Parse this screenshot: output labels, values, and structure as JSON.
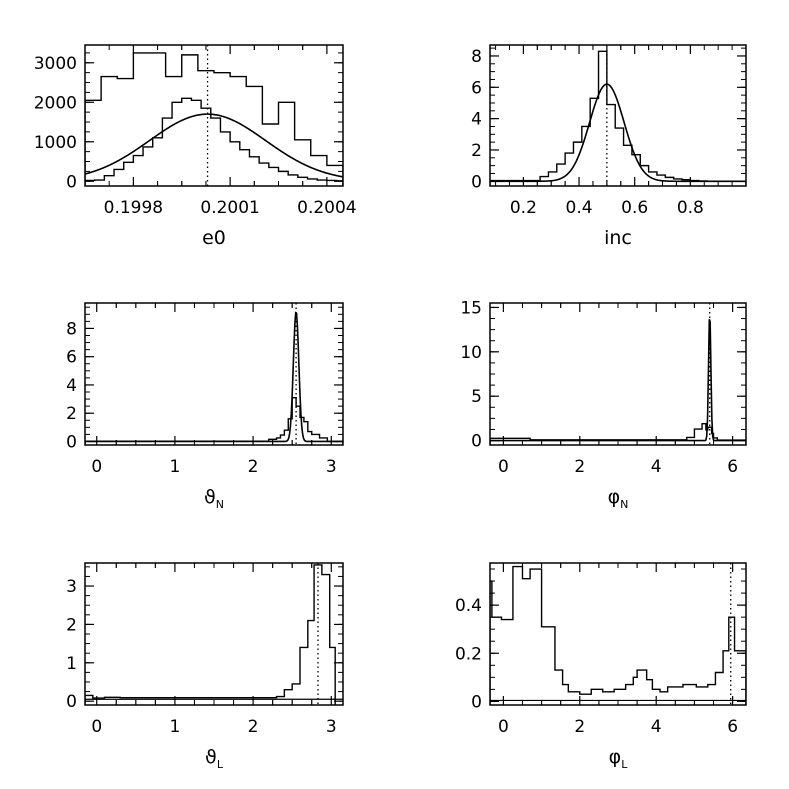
{
  "chart_data": [
    {
      "type": "histogram",
      "xlabel": "e0",
      "xlim": [
        0.19965,
        0.20045
      ],
      "ylim": [
        -120,
        3450
      ],
      "xticks": [
        {
          "v": 0.1998,
          "label": "0.1998"
        },
        {
          "v": 0.2001,
          "label": "0.2001"
        },
        {
          "v": 0.2004,
          "label": "0.2004"
        }
      ],
      "yticks": [
        {
          "v": 0,
          "label": "0"
        },
        {
          "v": 1000,
          "label": "1000"
        },
        {
          "v": 2000,
          "label": "2000"
        },
        {
          "v": 3000,
          "label": "3000"
        }
      ],
      "truth_x": 0.20003,
      "histograms": [
        {
          "name": "prior",
          "edges": [
            0.19965,
            0.19968,
            0.19971,
            0.19974,
            0.19977,
            0.1998,
            0.19983,
            0.19986,
            0.19989,
            0.19992,
            0.19995,
            0.19998,
            0.20001,
            0.20004,
            0.20007,
            0.2001,
            0.20013,
            0.20016,
            0.20019,
            0.20022,
            0.20025,
            0.20028,
            0.20031,
            0.20034,
            0.20037,
            0.2004,
            0.20043,
            0.20045
          ],
          "values": [
            20,
            30,
            140,
            300,
            480,
            650,
            870,
            1100,
            1600,
            2000,
            2100,
            2050,
            1850,
            1600,
            1250,
            1000,
            800,
            620,
            460,
            350,
            250,
            160,
            100,
            60,
            30,
            20,
            10
          ]
        },
        {
          "name": "posterior",
          "edges": [
            0.19965,
            0.1997,
            0.19975,
            0.1998,
            0.19985,
            0.1999,
            0.19995,
            0.2,
            0.20005,
            0.2001,
            0.20015,
            0.2002,
            0.20025,
            0.2003,
            0.20035,
            0.2004,
            0.20045
          ],
          "values": [
            2050,
            2650,
            2600,
            3250,
            3250,
            2650,
            3200,
            2800,
            2750,
            2650,
            2400,
            1450,
            2000,
            1050,
            650,
            400
          ]
        }
      ],
      "curves": [
        {
          "name": "gaussian",
          "type": "gaussian",
          "mean": 0.20003,
          "sigma": 0.00018,
          "amp": 1700
        }
      ]
    },
    {
      "type": "histogram",
      "xlabel": "inc",
      "xlim": [
        0.08,
        1.0
      ],
      "ylim": [
        -0.3,
        8.7
      ],
      "xticks": [
        {
          "v": 0.2,
          "label": "0.2"
        },
        {
          "v": 0.4,
          "label": "0.4"
        },
        {
          "v": 0.6,
          "label": "0.6"
        },
        {
          "v": 0.8,
          "label": "0.8"
        }
      ],
      "yticks": [
        {
          "v": 0,
          "label": "0"
        },
        {
          "v": 2,
          "label": "2"
        },
        {
          "v": 4,
          "label": "4"
        },
        {
          "v": 6,
          "label": "6"
        },
        {
          "v": 8,
          "label": "8"
        }
      ],
      "truth_x": 0.5,
      "histograms": [
        {
          "name": "posterior",
          "edges": [
            0.08,
            0.26,
            0.29,
            0.32,
            0.35,
            0.38,
            0.41,
            0.44,
            0.47,
            0.5,
            0.53,
            0.56,
            0.59,
            0.62,
            0.65,
            0.68,
            0.71,
            0.74,
            0.77,
            0.8,
            0.83,
            0.86,
            1.0
          ],
          "values": [
            0.05,
            0.3,
            0.6,
            1.1,
            1.8,
            2.5,
            3.5,
            5.3,
            8.3,
            4.9,
            3.4,
            2.3,
            1.7,
            1.0,
            0.6,
            0.4,
            0.25,
            0.15,
            0.1,
            0.05,
            0.02,
            0
          ]
        }
      ],
      "curves": [
        {
          "name": "gaussian",
          "type": "gaussian",
          "mean": 0.5,
          "sigma": 0.062,
          "amp": 6.2
        }
      ]
    },
    {
      "type": "histogram",
      "xlabel": "ϑ",
      "xlabel_sub": "N",
      "xlim": [
        -0.15,
        3.15
      ],
      "ylim": [
        -0.25,
        9.8
      ],
      "xticks": [
        {
          "v": 0,
          "label": "0"
        },
        {
          "v": 1,
          "label": "1"
        },
        {
          "v": 2,
          "label": "2"
        },
        {
          "v": 3,
          "label": "3"
        }
      ],
      "yticks": [
        {
          "v": 0,
          "label": "0"
        },
        {
          "v": 2,
          "label": "2"
        },
        {
          "v": 4,
          "label": "4"
        },
        {
          "v": 6,
          "label": "6"
        },
        {
          "v": 8,
          "label": "8"
        }
      ],
      "truth_x": 2.55,
      "histograms": [
        {
          "name": "posterior",
          "edges": [
            -0.15,
            2.2,
            2.3,
            2.35,
            2.4,
            2.45,
            2.5,
            2.55,
            2.6,
            2.65,
            2.7,
            2.75,
            2.85,
            2.95,
            3.15
          ],
          "values": [
            0.02,
            0.15,
            0.25,
            0.45,
            0.8,
            1.6,
            3.1,
            2.5,
            1.7,
            1.4,
            0.7,
            0.5,
            0.25,
            0
          ]
        }
      ],
      "curves": [
        {
          "name": "gaussian",
          "type": "gaussian",
          "mean": 2.55,
          "sigma": 0.035,
          "amp": 9.2
        }
      ]
    },
    {
      "type": "histogram",
      "xlabel": "φ",
      "xlabel_sub": "N",
      "xlim": [
        -0.35,
        6.35
      ],
      "ylim": [
        -0.5,
        15.5
      ],
      "xticks": [
        {
          "v": 0,
          "label": "0"
        },
        {
          "v": 2,
          "label": "2"
        },
        {
          "v": 4,
          "label": "4"
        },
        {
          "v": 6,
          "label": "6"
        }
      ],
      "yticks": [
        {
          "v": 0,
          "label": "0"
        },
        {
          "v": 5,
          "label": "5"
        },
        {
          "v": 10,
          "label": "10"
        },
        {
          "v": 15,
          "label": "15"
        }
      ],
      "truth_x": 5.4,
      "histograms": [
        {
          "name": "posterior",
          "edges": [
            -0.35,
            0.7,
            4.8,
            5.0,
            5.2,
            5.3,
            5.35,
            5.45,
            5.5,
            5.6,
            6.35
          ],
          "values": [
            0.25,
            0.08,
            0.35,
            1.3,
            1.9,
            1.2,
            1.5,
            0.8,
            0.3,
            0.05
          ]
        }
      ],
      "curves": [
        {
          "name": "gaussian",
          "type": "gaussian",
          "mean": 5.4,
          "sigma": 0.03,
          "amp": 14.5
        }
      ]
    },
    {
      "type": "histogram",
      "xlabel": "ϑ",
      "xlabel_sub": "L",
      "xlim": [
        -0.15,
        3.15
      ],
      "ylim": [
        -0.1,
        3.6
      ],
      "xticks": [
        {
          "v": 0,
          "label": "0"
        },
        {
          "v": 1,
          "label": "1"
        },
        {
          "v": 2,
          "label": "2"
        },
        {
          "v": 3,
          "label": "3"
        }
      ],
      "yticks": [
        {
          "v": 0,
          "label": "0"
        },
        {
          "v": 1,
          "label": "1"
        },
        {
          "v": 2,
          "label": "2"
        },
        {
          "v": 3,
          "label": "3"
        }
      ],
      "truth_x": 2.83,
      "histograms": [
        {
          "name": "posterior",
          "edges": [
            -0.15,
            -0.05,
            0.1,
            0.3,
            2.3,
            2.4,
            2.5,
            2.6,
            2.7,
            2.78,
            2.88,
            2.98,
            3.05
          ],
          "values": [
            0.15,
            0.08,
            0.1,
            0.09,
            0.12,
            0.3,
            0.45,
            1.4,
            2.1,
            3.55,
            3.3,
            1.4
          ]
        }
      ],
      "curves": [
        {
          "name": "baseline",
          "type": "segment",
          "x0": -0.15,
          "x1": 3.15,
          "y": 0.05
        }
      ]
    },
    {
      "type": "histogram",
      "xlabel": "φ",
      "xlabel_sub": "L",
      "xlim": [
        -0.35,
        6.35
      ],
      "ylim": [
        -0.015,
        0.575
      ],
      "xticks": [
        {
          "v": 0,
          "label": "0"
        },
        {
          "v": 2,
          "label": "2"
        },
        {
          "v": 4,
          "label": "4"
        },
        {
          "v": 6,
          "label": "6"
        }
      ],
      "yticks": [
        {
          "v": 0,
          "label": "0"
        },
        {
          "v": 0.2,
          "label": "0.2"
        },
        {
          "v": 0.4,
          "label": "0.4"
        }
      ],
      "truth_x": 5.95,
      "histograms": [
        {
          "name": "posterior",
          "edges": [
            -0.35,
            -0.3,
            -0.05,
            0.25,
            0.5,
            0.7,
            1.0,
            1.35,
            1.55,
            1.7,
            2.0,
            2.3,
            2.6,
            2.9,
            3.2,
            3.4,
            3.5,
            3.75,
            3.9,
            4.1,
            4.3,
            4.7,
            5.05,
            5.35,
            5.55,
            5.75,
            5.9,
            6.05,
            6.35
          ],
          "values": [
            0.5,
            0.35,
            0.34,
            0.56,
            0.51,
            0.55,
            0.31,
            0.13,
            0.07,
            0.04,
            0.03,
            0.05,
            0.04,
            0.05,
            0.07,
            0.1,
            0.13,
            0.09,
            0.05,
            0.04,
            0.06,
            0.07,
            0.06,
            0.07,
            0.12,
            0.21,
            0.35,
            0.21
          ]
        }
      ],
      "curves": [
        {
          "name": "baseline",
          "type": "segment",
          "x0": -0.35,
          "x1": 6.35,
          "y": 0.004
        }
      ]
    }
  ]
}
